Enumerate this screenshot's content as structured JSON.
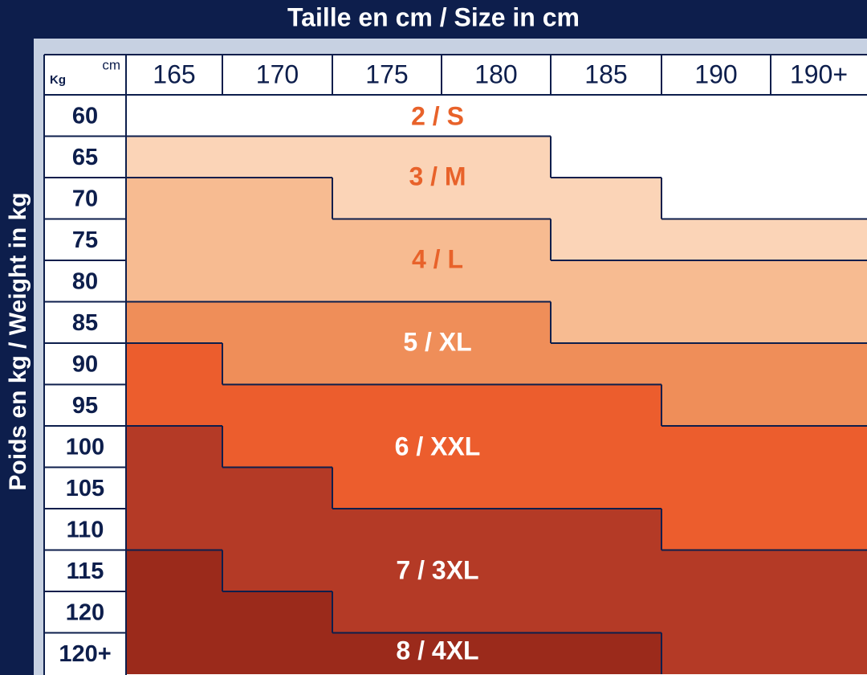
{
  "header": {
    "title": "Taille en cm / Size in cm"
  },
  "side_title": "Poids en kg / Weight in kg",
  "corner": {
    "weight_unit": "Kg",
    "height_unit": "cm"
  },
  "columns": [
    "165",
    "170",
    "175",
    "180",
    "185",
    "190",
    "190+"
  ],
  "rows": [
    "60",
    "65",
    "70",
    "75",
    "80",
    "85",
    "90",
    "95",
    "100",
    "105",
    "110",
    "115",
    "120",
    "120+"
  ],
  "sizes": [
    "2 / S",
    "3 / M",
    "4 / L",
    "5 / XL",
    "6 / XXL",
    "7 / 3XL",
    "8 / 4XL"
  ]
}
